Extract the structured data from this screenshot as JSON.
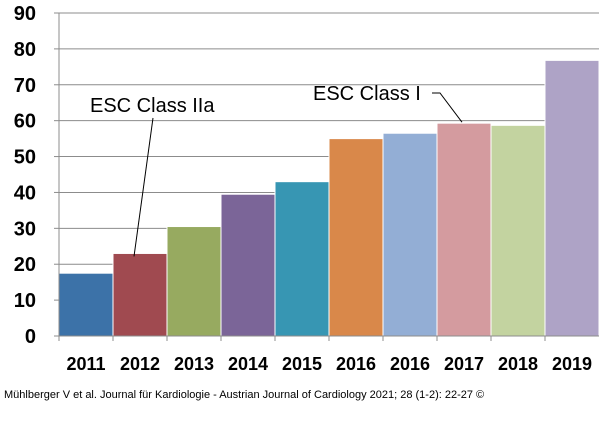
{
  "chart_data": {
    "type": "bar",
    "title": "",
    "xlabel": "",
    "ylabel": "",
    "ylim": [
      0,
      90
    ],
    "yticks": [
      0,
      10,
      20,
      30,
      40,
      50,
      60,
      70,
      80,
      90
    ],
    "grid": true,
    "categories": [
      "2011",
      "2012",
      "2013",
      "2014",
      "2015",
      "2016",
      "2016",
      "2017",
      "2018",
      "2019"
    ],
    "values": [
      17.5,
      23,
      30.5,
      39.5,
      43,
      55,
      56.5,
      59.3,
      58.7,
      76.8
    ],
    "colors": [
      "#3c72a8",
      "#a04a50",
      "#97aa60",
      "#7b6598",
      "#3796b3",
      "#d9884a",
      "#93aed5",
      "#d49b9f",
      "#c3d3a0",
      "#aea3c6"
    ],
    "annotations": [
      {
        "text": "ESC  Class IIa",
        "target_index": 1
      },
      {
        "text": "ESC  Class  I",
        "target_index": 7
      }
    ]
  },
  "caption": "Mühlberger V et al. Journal für Kardiologie - Austrian Journal of Cardiology 2021; 28 (1-2): 22-27 ©"
}
